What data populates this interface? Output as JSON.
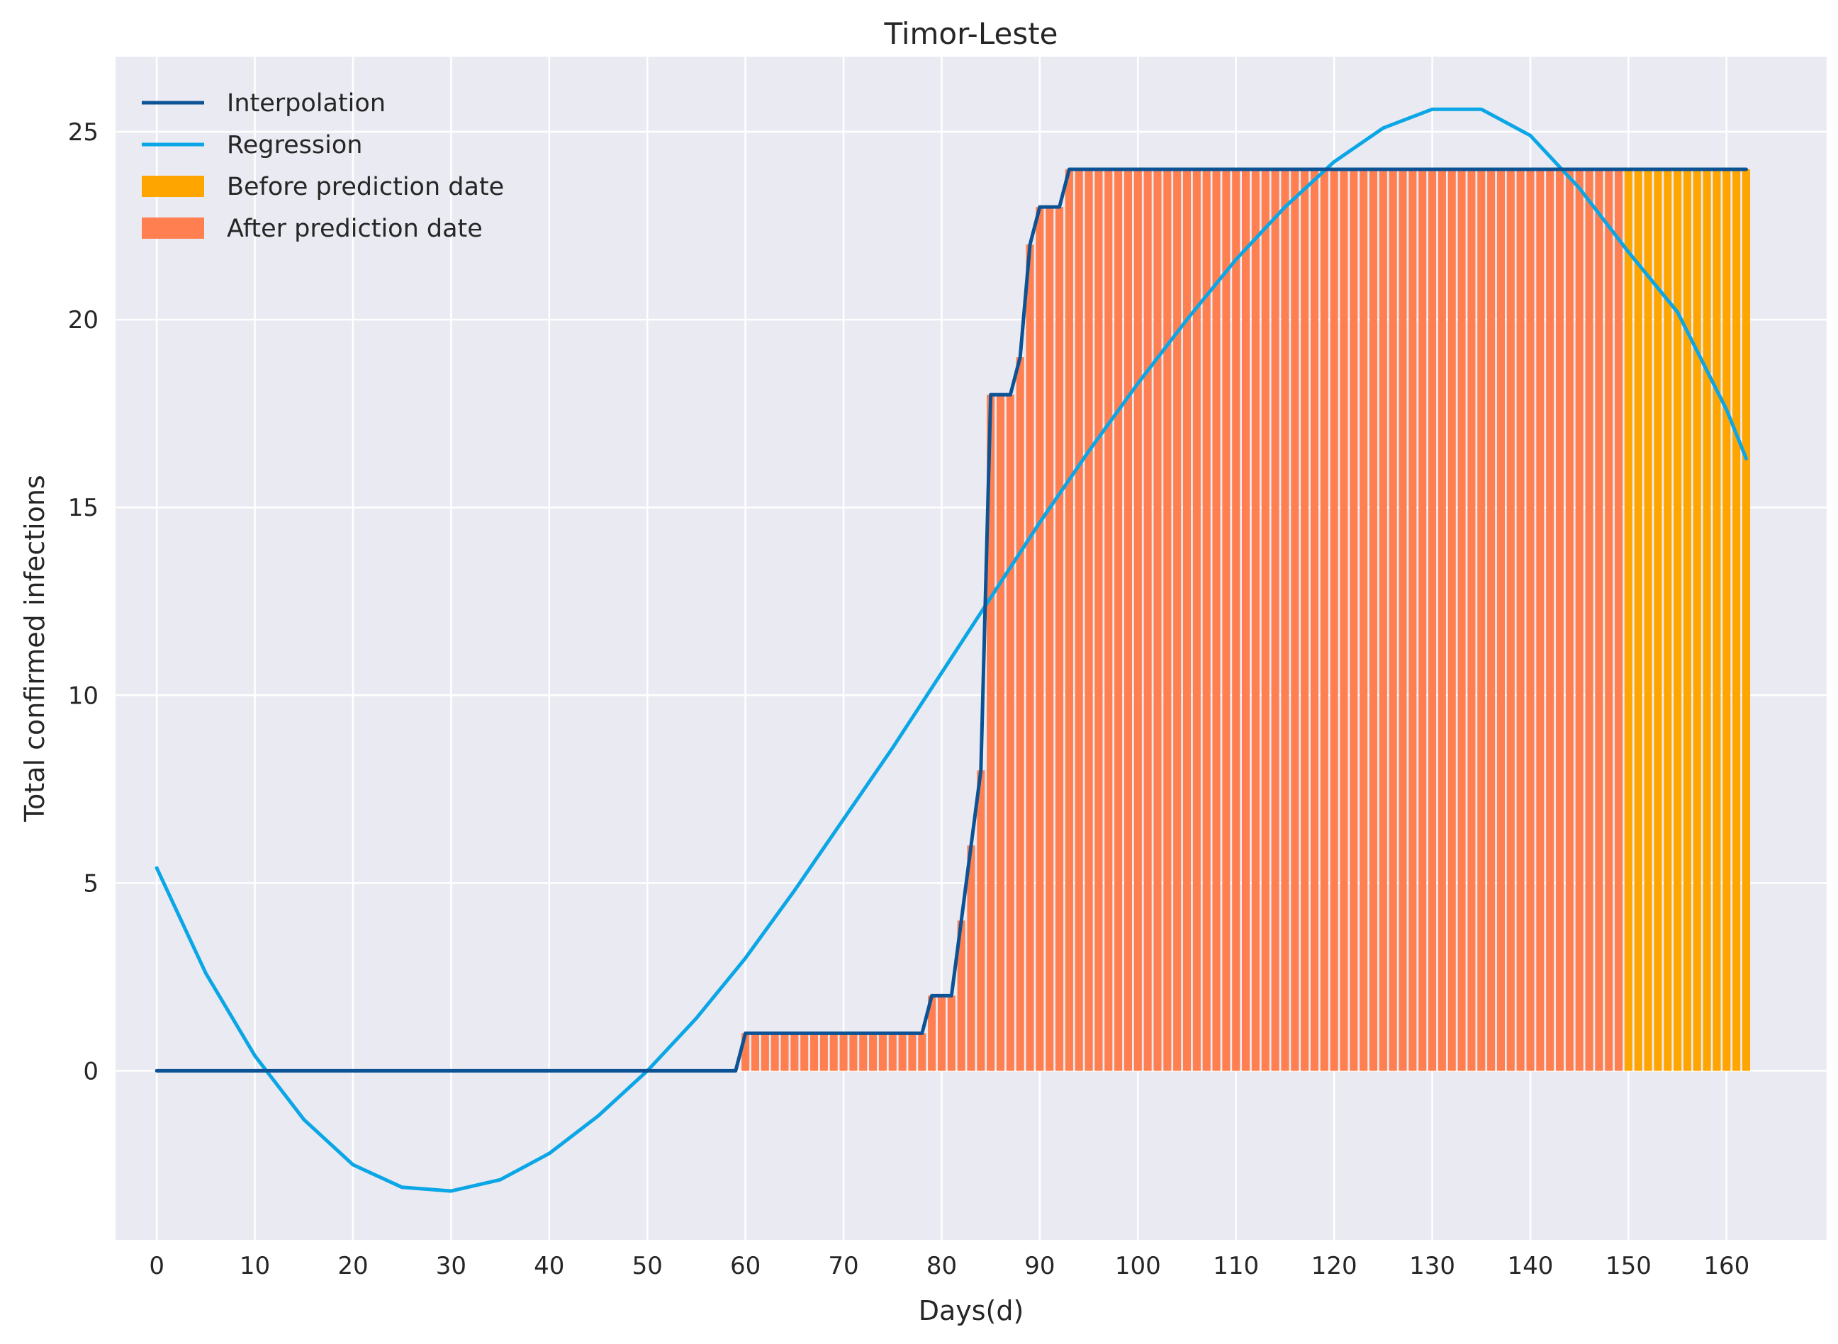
{
  "chart_data": {
    "type": "bar",
    "title": "Timor-Leste",
    "xlabel": "Days(d)",
    "ylabel": "Total confirmed infections",
    "xlim": [
      -4.2,
      170.2
    ],
    "ylim": [
      -4.5,
      27.0
    ],
    "xticks": [
      0,
      10,
      20,
      30,
      40,
      50,
      60,
      70,
      80,
      90,
      100,
      110,
      120,
      130,
      140,
      150,
      160
    ],
    "yticks": [
      0,
      5,
      10,
      15,
      20,
      25
    ],
    "grid": true,
    "legend_position": "top-left",
    "colors": {
      "background": "#EAEAF2",
      "grid": "#FFFFFF",
      "interpolation": "#0C5396",
      "regression": "#0BA6E6",
      "before_prediction": "#FFA500",
      "after_prediction": "#FF7F50"
    },
    "series": [
      {
        "name": "Interpolation",
        "kind": "line",
        "points": [
          [
            0,
            0
          ],
          [
            59,
            0
          ],
          [
            60,
            1
          ],
          [
            78,
            1
          ],
          [
            79,
            2
          ],
          [
            81,
            2
          ],
          [
            82,
            4
          ],
          [
            83,
            6
          ],
          [
            84,
            8
          ],
          [
            85,
            18
          ],
          [
            87,
            18
          ],
          [
            88,
            19
          ],
          [
            89,
            22
          ],
          [
            90,
            23
          ],
          [
            92,
            23
          ],
          [
            93,
            24
          ],
          [
            162,
            24
          ]
        ]
      },
      {
        "name": "Regression",
        "kind": "line",
        "points": [
          [
            0,
            5.4
          ],
          [
            5,
            2.6
          ],
          [
            10,
            0.4
          ],
          [
            15,
            -1.3
          ],
          [
            20,
            -2.5
          ],
          [
            25,
            -3.1
          ],
          [
            30,
            -3.2
          ],
          [
            35,
            -2.9
          ],
          [
            40,
            -2.2
          ],
          [
            45,
            -1.2
          ],
          [
            50,
            0.0
          ],
          [
            55,
            1.4
          ],
          [
            60,
            3.0
          ],
          [
            65,
            4.8
          ],
          [
            70,
            6.7
          ],
          [
            75,
            8.6
          ],
          [
            80,
            10.6
          ],
          [
            85,
            12.6
          ],
          [
            90,
            14.6
          ],
          [
            95,
            16.5
          ],
          [
            100,
            18.3
          ],
          [
            105,
            20.0
          ],
          [
            110,
            21.6
          ],
          [
            115,
            23.0
          ],
          [
            120,
            24.2
          ],
          [
            125,
            25.1
          ],
          [
            130,
            25.6
          ],
          [
            135,
            25.6
          ],
          [
            140,
            24.9
          ],
          [
            145,
            23.5
          ],
          [
            150,
            21.8
          ],
          [
            155,
            20.2
          ],
          [
            160,
            17.6
          ],
          [
            162,
            16.3
          ]
        ]
      },
      {
        "name": "Before prediction date",
        "kind": "bar",
        "range": [
          150,
          162
        ]
      },
      {
        "name": "After prediction date",
        "kind": "bar",
        "range": [
          60,
          149
        ]
      }
    ]
  }
}
